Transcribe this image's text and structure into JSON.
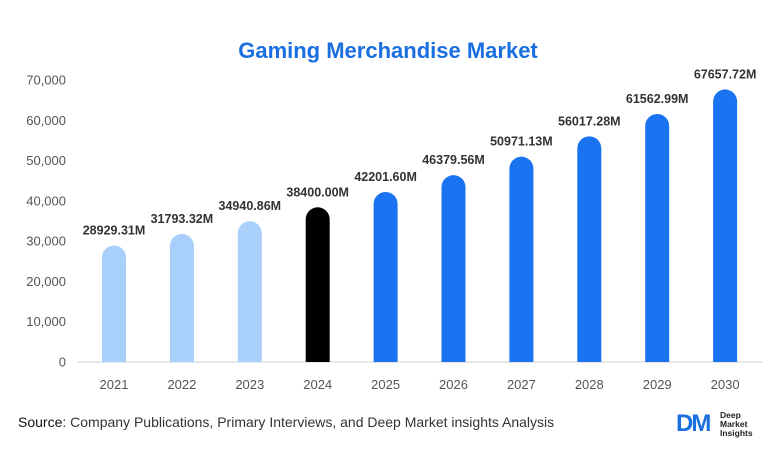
{
  "chart_data": {
    "type": "bar",
    "title": "Gaming Merchandise Market",
    "categories": [
      "2021",
      "2022",
      "2023",
      "2024",
      "2025",
      "2026",
      "2027",
      "2028",
      "2029",
      "2030"
    ],
    "values": [
      28929.31,
      31793.32,
      34940.86,
      38400.0,
      42201.6,
      46379.56,
      50971.13,
      56017.28,
      61562.99,
      67657.72
    ],
    "data_labels": [
      "28929.31M",
      "31793.32M",
      "34940.86M",
      "38400.00M",
      "42201.60M",
      "46379.56M",
      "50971.13M",
      "56017.28M",
      "61562.99M",
      "67657.72M"
    ],
    "yticks": [
      "0",
      "10,000",
      "20,000",
      "30,000",
      "40,000",
      "50,000",
      "60,000",
      "70,000"
    ],
    "ylim": [
      0,
      70000
    ],
    "grid": false,
    "bar_colors": [
      "#a8d0fb",
      "#a8d0fb",
      "#a8d0fb",
      "#000000",
      "#1a73f0",
      "#1a73f0",
      "#1a73f0",
      "#1a73f0",
      "#1a73f0",
      "#1a73f0"
    ]
  },
  "source": {
    "label": "Source",
    "text": ": Company Publications, Primary Interviews, and Deep Market insights Analysis"
  },
  "logo": {
    "mark": "DM",
    "line1": "Deep",
    "line2": "Market",
    "line3": "Insights"
  }
}
